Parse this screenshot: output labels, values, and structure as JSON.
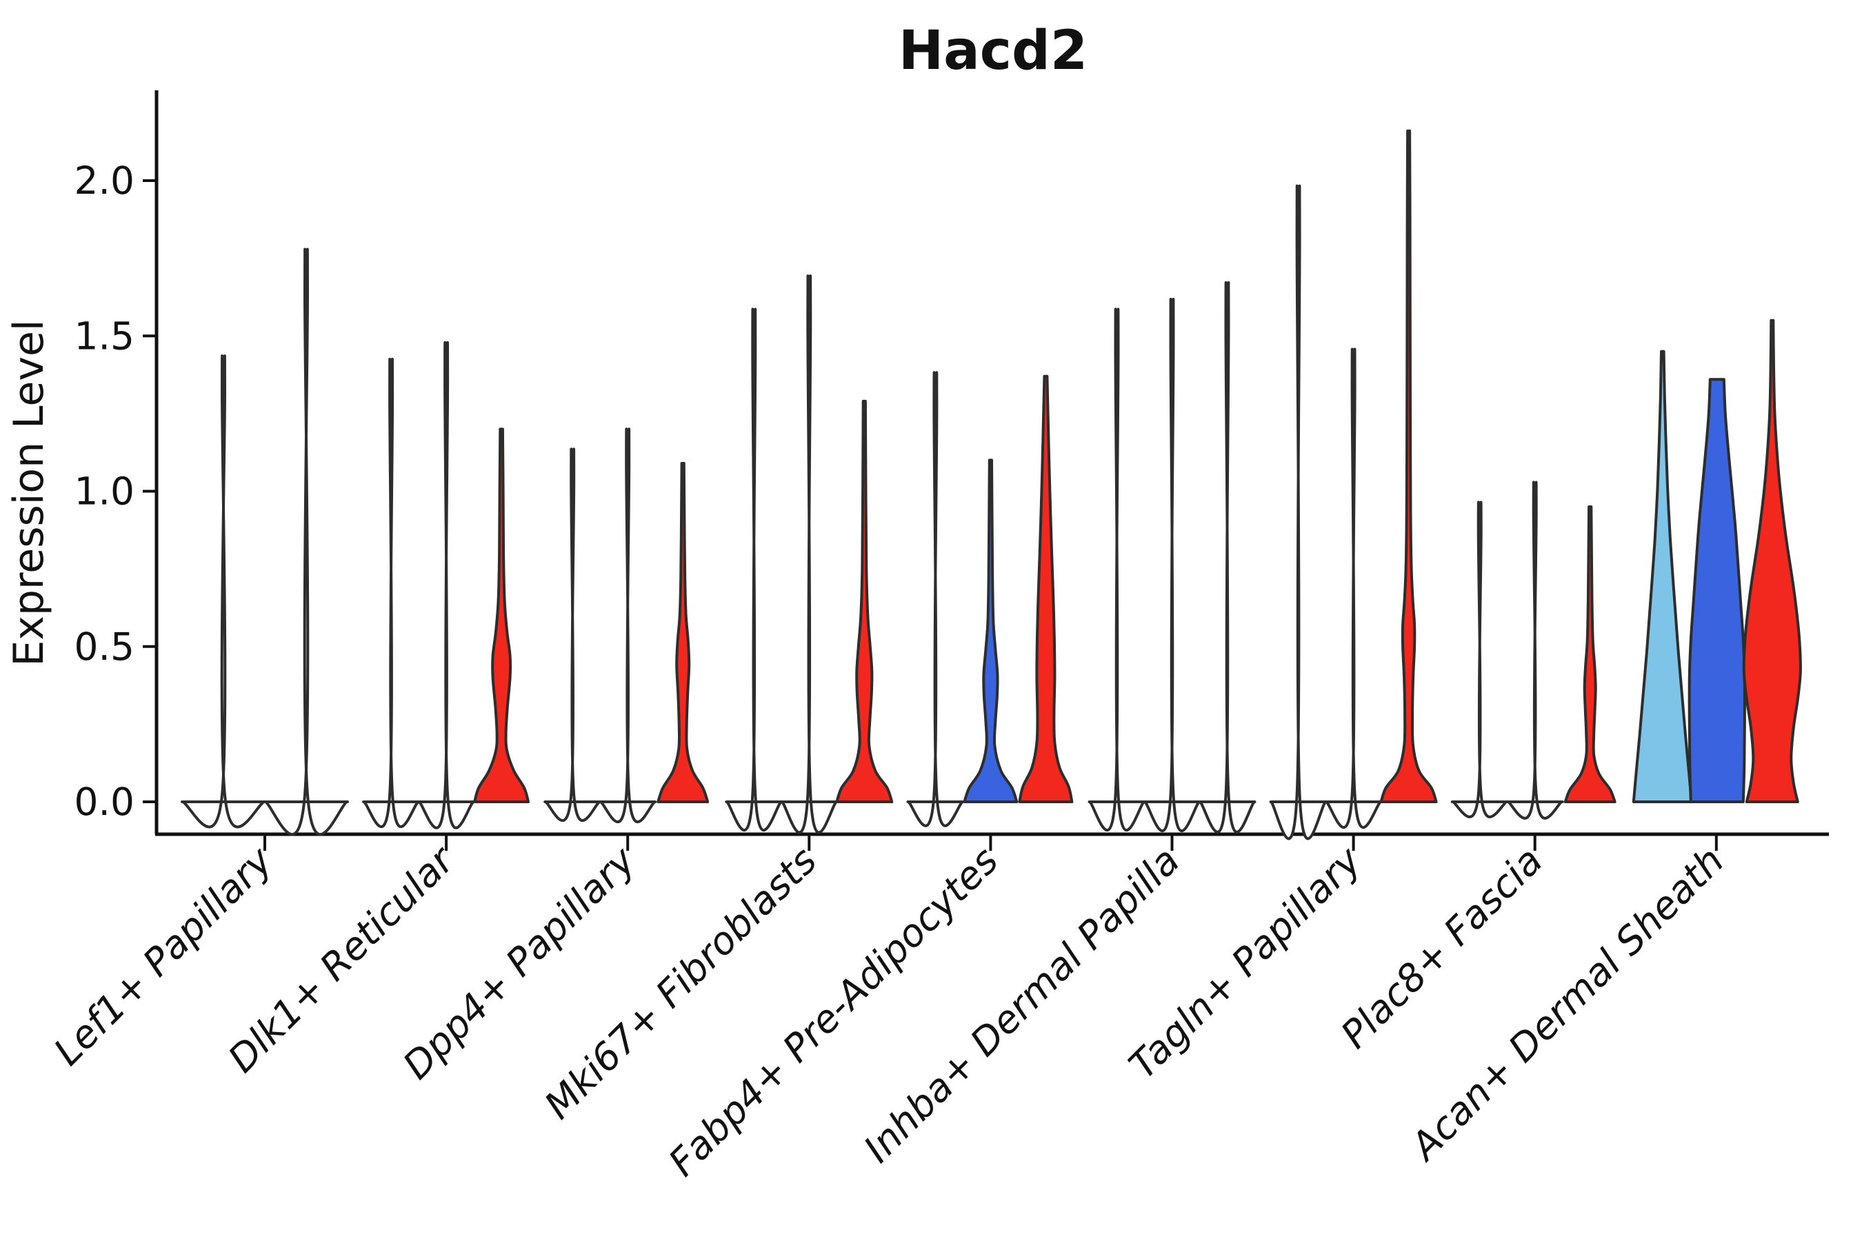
{
  "figure": {
    "title": "Hacd2"
  },
  "axes": {
    "ylabel": "Expression Level",
    "xlabel": "",
    "ytick_labels": [
      "0.0",
      "0.5",
      "1.0",
      "1.5",
      "2.0"
    ],
    "ytick_values": [
      0.0,
      0.5,
      1.0,
      1.5,
      2.0
    ],
    "ylim": [
      -0.1,
      2.28
    ],
    "xtick_labels": [
      "Lef1+ Papillary",
      "Dlk1+ Reticular",
      "Dpp4+ Papillary",
      "Mki67+ Fibroblasts",
      "Fabp4+ Pre-Adipocytes",
      "Inhba+ Dermal Papilla",
      "Tagln+ Papillary",
      "Plac8+ Fascia",
      "Acan+ Dermal Sheath"
    ]
  },
  "chart_data": {
    "type": "violin",
    "title": "Hacd2",
    "xlabel": "",
    "ylabel": "Expression Level",
    "ylim": [
      -0.1,
      2.28
    ],
    "grid": "off",
    "legend_position": "none",
    "categories": [
      "Lef1+ Papillary",
      "Dlk1+ Reticular",
      "Dpp4+ Papillary",
      "Mki67+ Fibroblasts",
      "Fabp4+ Pre-Adipocytes",
      "Inhba+ Dermal Papilla",
      "Tagln+ Papillary",
      "Plac8+ Fascia",
      "Acan+ Dermal Sheath"
    ],
    "series_colors": {
      "lightblue": "#7EC4E8",
      "blue": "#3A63DF",
      "red": "#F2281E"
    },
    "outline_color": "#2d2d2d",
    "axis_color": "#111111",
    "note": "Stacked split violin plot; most violins are collapsed to spikes (near-zero density above 0). max = maximum expression value reached by each violin; profile = [expression_value, half_width] density outline.",
    "groups": [
      {
        "category": "Lef1+ Papillary",
        "violins": [
          {
            "color_key": "none",
            "fill": "#ffffff",
            "kind": "spike",
            "max": 1.38,
            "dx": -60,
            "base_hw": 60
          },
          {
            "color_key": "none",
            "fill": "#ffffff",
            "kind": "spike",
            "max": 1.7,
            "dx": 60,
            "base_hw": 60
          }
        ]
      },
      {
        "category": "Dlk1+ Reticular",
        "violins": [
          {
            "color_key": "none",
            "fill": "#ffffff",
            "kind": "spike",
            "max": 1.37,
            "dx": -80,
            "base_hw": 40
          },
          {
            "color_key": "none",
            "fill": "#ffffff",
            "kind": "spike",
            "max": 1.42,
            "dx": 0,
            "base_hw": 40
          },
          {
            "color_key": "red",
            "fill": "#F2281E",
            "kind": "body",
            "max": 1.2,
            "dx": 80,
            "base_hw": 39,
            "profile": [
              [
                0,
                39
              ],
              [
                0.045,
                33
              ],
              [
                0.1,
                18
              ],
              [
                0.165,
                8
              ],
              [
                0.22,
                6.5
              ],
              [
                0.3,
                8.5
              ],
              [
                0.4,
                12.5
              ],
              [
                0.47,
                12.5
              ],
              [
                0.55,
                8
              ],
              [
                0.65,
                4.5
              ],
              [
                0.8,
                3
              ],
              [
                1.0,
                2.5
              ],
              [
                1.2,
                1.8
              ]
            ]
          }
        ]
      },
      {
        "category": "Dpp4+ Papillary",
        "violins": [
          {
            "color_key": "none",
            "fill": "#ffffff",
            "kind": "spike",
            "max": 1.1,
            "dx": -80,
            "base_hw": 40
          },
          {
            "color_key": "none",
            "fill": "#ffffff",
            "kind": "spike",
            "max": 1.16,
            "dx": 0,
            "base_hw": 40
          },
          {
            "color_key": "red",
            "fill": "#F2281E",
            "kind": "body",
            "max": 1.09,
            "dx": 80,
            "base_hw": 36,
            "profile": [
              [
                0,
                36
              ],
              [
                0.045,
                29
              ],
              [
                0.1,
                14
              ],
              [
                0.17,
                6
              ],
              [
                0.25,
                5.5
              ],
              [
                0.35,
                7
              ],
              [
                0.44,
                9
              ],
              [
                0.52,
                7.5
              ],
              [
                0.6,
                4.5
              ],
              [
                0.72,
                3
              ],
              [
                0.9,
                2.2
              ],
              [
                1.09,
                1.6
              ]
            ]
          }
        ]
      },
      {
        "category": "Mki67+ Fibroblasts",
        "violins": [
          {
            "color_key": "none",
            "fill": "#ffffff",
            "kind": "spike",
            "max": 1.52,
            "dx": -80,
            "base_hw": 40
          },
          {
            "color_key": "none",
            "fill": "#ffffff",
            "kind": "spike",
            "max": 1.62,
            "dx": 0,
            "base_hw": 40
          },
          {
            "color_key": "red",
            "fill": "#F2281E",
            "kind": "body",
            "max": 1.29,
            "dx": 80,
            "base_hw": 40,
            "profile": [
              [
                0,
                40
              ],
              [
                0.045,
                33
              ],
              [
                0.1,
                16
              ],
              [
                0.18,
                7
              ],
              [
                0.26,
                8
              ],
              [
                0.35,
                10.5
              ],
              [
                0.42,
                11
              ],
              [
                0.5,
                8.5
              ],
              [
                0.6,
                5
              ],
              [
                0.75,
                3
              ],
              [
                1.0,
                2.2
              ],
              [
                1.29,
                1.6
              ]
            ]
          }
        ]
      },
      {
        "category": "Fabp4+ Pre-Adipocytes",
        "violins": [
          {
            "color_key": "none",
            "fill": "#ffffff",
            "kind": "spike",
            "max": 1.33,
            "dx": -80,
            "base_hw": 40
          },
          {
            "color_key": "blue",
            "fill": "#3A63DF",
            "kind": "body",
            "max": 1.1,
            "dx": 0,
            "base_hw": 38,
            "profile": [
              [
                0,
                38
              ],
              [
                0.045,
                31
              ],
              [
                0.1,
                15
              ],
              [
                0.18,
                6
              ],
              [
                0.26,
                7
              ],
              [
                0.34,
                9.5
              ],
              [
                0.41,
                10
              ],
              [
                0.49,
                7
              ],
              [
                0.58,
                4
              ],
              [
                0.72,
                2.8
              ],
              [
                0.9,
                2.2
              ],
              [
                1.1,
                1.6
              ]
            ]
          },
          {
            "color_key": "red",
            "fill": "#F2281E",
            "kind": "body",
            "max": 1.37,
            "dx": 80,
            "base_hw": 38,
            "profile": [
              [
                0,
                38
              ],
              [
                0.05,
                33
              ],
              [
                0.11,
                20
              ],
              [
                0.19,
                13
              ],
              [
                0.28,
                12
              ],
              [
                0.4,
                13
              ],
              [
                0.52,
                12.5
              ],
              [
                0.65,
                11
              ],
              [
                0.78,
                9
              ],
              [
                0.92,
                7
              ],
              [
                1.08,
                5
              ],
              [
                1.22,
                3.5
              ],
              [
                1.37,
                2
              ]
            ]
          }
        ]
      },
      {
        "category": "Inhba+ Dermal Papilla",
        "violins": [
          {
            "color_key": "none",
            "fill": "#ffffff",
            "kind": "spike",
            "max": 1.52,
            "dx": -80,
            "base_hw": 40
          },
          {
            "color_key": "none",
            "fill": "#ffffff",
            "kind": "spike",
            "max": 1.55,
            "dx": 0,
            "base_hw": 40
          },
          {
            "color_key": "none",
            "fill": "#ffffff",
            "kind": "spike",
            "max": 1.6,
            "dx": 80,
            "base_hw": 40
          }
        ]
      },
      {
        "category": "Tagln+ Papillary",
        "violins": [
          {
            "color_key": "none",
            "fill": "#ffffff",
            "kind": "spike",
            "max": 1.89,
            "dx": -80,
            "base_hw": 40
          },
          {
            "color_key": "none",
            "fill": "#ffffff",
            "kind": "spike",
            "max": 1.4,
            "dx": 0,
            "base_hw": 40
          },
          {
            "color_key": "red",
            "fill": "#F2281E",
            "kind": "body",
            "max": 2.16,
            "dx": 80,
            "base_hw": 40,
            "profile": [
              [
                0,
                40
              ],
              [
                0.045,
                33
              ],
              [
                0.1,
                15
              ],
              [
                0.18,
                6.5
              ],
              [
                0.28,
                5.5
              ],
              [
                0.4,
                6.5
              ],
              [
                0.5,
                8.5
              ],
              [
                0.57,
                8.5
              ],
              [
                0.65,
                6
              ],
              [
                0.75,
                4
              ],
              [
                0.9,
                3
              ],
              [
                1.1,
                2.6
              ],
              [
                1.5,
                2.2
              ],
              [
                1.85,
                2
              ],
              [
                2.16,
                1.5
              ]
            ]
          }
        ]
      },
      {
        "category": "Plac8+ Fascia",
        "violins": [
          {
            "color_key": "none",
            "fill": "#ffffff",
            "kind": "spike",
            "max": 0.94,
            "dx": -80,
            "base_hw": 40
          },
          {
            "color_key": "none",
            "fill": "#ffffff",
            "kind": "spike",
            "max": 1.0,
            "dx": 0,
            "base_hw": 40
          },
          {
            "color_key": "red",
            "fill": "#F2281E",
            "kind": "body",
            "max": 0.95,
            "dx": 80,
            "base_hw": 36,
            "profile": [
              [
                0,
                36
              ],
              [
                0.04,
                29
              ],
              [
                0.09,
                13
              ],
              [
                0.15,
                5.5
              ],
              [
                0.22,
                5.5
              ],
              [
                0.3,
                7
              ],
              [
                0.37,
                8
              ],
              [
                0.44,
                6.5
              ],
              [
                0.52,
                4
              ],
              [
                0.65,
                2.8
              ],
              [
                0.8,
                2.2
              ],
              [
                0.95,
                1.6
              ]
            ]
          }
        ]
      },
      {
        "category": "Acan+ Dermal Sheath",
        "violins": [
          {
            "color_key": "lightblue",
            "fill": "#7EC4E8",
            "kind": "body",
            "max": 1.45,
            "dx": -78,
            "base_hw": 42,
            "profile": [
              [
                0,
                42
              ],
              [
                0.1,
                38
              ],
              [
                0.22,
                33
              ],
              [
                0.35,
                28
              ],
              [
                0.48,
                23
              ],
              [
                0.6,
                19
              ],
              [
                0.72,
                15
              ],
              [
                0.85,
                11
              ],
              [
                1.0,
                7.5
              ],
              [
                1.15,
                5
              ],
              [
                1.3,
                3
              ],
              [
                1.45,
                1.8
              ]
            ]
          },
          {
            "color_key": "blue",
            "fill": "#3A63DF",
            "kind": "body-flat",
            "max": 1.36,
            "dx": 1,
            "base_hw": 38,
            "profile": [
              [
                0,
                38
              ],
              [
                0.12,
                39.5
              ],
              [
                0.25,
                40
              ],
              [
                0.4,
                40
              ],
              [
                0.52,
                38
              ],
              [
                0.65,
                34
              ],
              [
                0.78,
                30
              ],
              [
                0.9,
                26
              ],
              [
                1.02,
                21
              ],
              [
                1.14,
                16
              ],
              [
                1.25,
                12
              ],
              [
                1.36,
                10
              ]
            ]
          },
          {
            "color_key": "red",
            "fill": "#F2281E",
            "kind": "body",
            "max": 1.55,
            "dx": 81,
            "base_hw": 37,
            "profile": [
              [
                0,
                37
              ],
              [
                0.06,
                31
              ],
              [
                0.14,
                27.5
              ],
              [
                0.24,
                31
              ],
              [
                0.33,
                37
              ],
              [
                0.42,
                41
              ],
              [
                0.52,
                39.5
              ],
              [
                0.62,
                35
              ],
              [
                0.72,
                29
              ],
              [
                0.82,
                22
              ],
              [
                0.92,
                16
              ],
              [
                1.03,
                10.5
              ],
              [
                1.14,
                6.5
              ],
              [
                1.26,
                3.5
              ],
              [
                1.4,
                2.2
              ],
              [
                1.55,
                1.5
              ]
            ]
          }
        ]
      }
    ]
  }
}
